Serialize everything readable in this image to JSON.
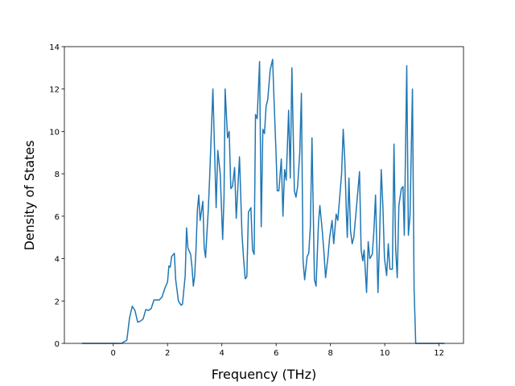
{
  "chart_data": {
    "type": "line",
    "xlabel": "Frequency (THz)",
    "ylabel": "Density of States",
    "color": "#1f77b4",
    "xlim": [
      -1.8,
      12.9
    ],
    "ylim": [
      0,
      14
    ],
    "xticks": [
      0,
      2,
      4,
      6,
      8,
      10,
      12
    ],
    "yticks": [
      0,
      2,
      4,
      6,
      8,
      10,
      12,
      14
    ],
    "x": [
      -1.15,
      0.3,
      0.5,
      0.6,
      0.7,
      0.8,
      0.9,
      1.0,
      1.1,
      1.2,
      1.3,
      1.4,
      1.5,
      1.6,
      1.7,
      1.8,
      1.9,
      2.0,
      2.05,
      2.1,
      2.15,
      2.25,
      2.3,
      2.4,
      2.5,
      2.55,
      2.65,
      2.7,
      2.75,
      2.85,
      2.9,
      2.95,
      3.0,
      3.05,
      3.1,
      3.15,
      3.2,
      3.3,
      3.35,
      3.4,
      3.5,
      3.55,
      3.67,
      3.79,
      3.85,
      3.94,
      4.03,
      4.08,
      4.12,
      4.21,
      4.27,
      4.33,
      4.39,
      4.47,
      4.53,
      4.65,
      4.74,
      4.8,
      4.86,
      4.92,
      4.98,
      5.07,
      5.13,
      5.19,
      5.24,
      5.3,
      5.39,
      5.45,
      5.51,
      5.57,
      5.63,
      5.69,
      5.78,
      5.87,
      5.93,
      5.99,
      6.04,
      6.1,
      6.19,
      6.25,
      6.31,
      6.37,
      6.46,
      6.52,
      6.58,
      6.67,
      6.73,
      6.79,
      6.87,
      6.93,
      6.99,
      7.05,
      7.14,
      7.2,
      7.26,
      7.32,
      7.41,
      7.47,
      7.56,
      7.61,
      7.7,
      7.76,
      7.82,
      7.91,
      7.97,
      8.06,
      8.12,
      8.21,
      8.27,
      8.36,
      8.41,
      8.47,
      8.53,
      8.59,
      8.62,
      8.68,
      8.74,
      8.8,
      8.86,
      8.95,
      9.07,
      9.13,
      9.19,
      9.24,
      9.33,
      9.39,
      9.45,
      9.54,
      9.6,
      9.66,
      9.75,
      9.81,
      9.87,
      9.93,
      9.99,
      10.07,
      10.13,
      10.19,
      10.28,
      10.34,
      10.4,
      10.46,
      10.52,
      10.61,
      10.67,
      10.72,
      10.81,
      10.87,
      10.93,
      11.02,
      11.08,
      11.14,
      12.2
    ],
    "values": [
      0,
      0,
      0.15,
      1.2,
      1.75,
      1.55,
      1.0,
      1.05,
      1.15,
      1.6,
      1.55,
      1.65,
      2.05,
      2.05,
      2.05,
      2.2,
      2.6,
      2.9,
      3.65,
      3.6,
      4.1,
      4.25,
      3.0,
      2.0,
      1.8,
      1.85,
      3.2,
      5.45,
      4.5,
      4.2,
      3.6,
      2.7,
      3.2,
      4.5,
      6.3,
      7.0,
      5.8,
      6.7,
      4.5,
      4.05,
      6.3,
      7.8,
      12.0,
      6.4,
      9.1,
      8.0,
      4.9,
      6.9,
      12.0,
      9.7,
      10.0,
      7.3,
      7.4,
      8.3,
      5.9,
      8.8,
      5.2,
      4.0,
      3.05,
      3.15,
      6.2,
      6.4,
      4.4,
      4.2,
      10.8,
      10.6,
      13.3,
      5.5,
      10.1,
      9.9,
      11.2,
      11.5,
      12.9,
      13.4,
      11.2,
      9.2,
      7.2,
      7.2,
      8.7,
      6.0,
      8.2,
      7.7,
      11.0,
      7.8,
      13.0,
      7.2,
      6.9,
      7.4,
      9.0,
      11.8,
      3.9,
      3.0,
      4.1,
      4.25,
      5.5,
      9.7,
      3.0,
      2.7,
      5.7,
      6.5,
      5.3,
      4.3,
      3.1,
      4.1,
      5.0,
      5.8,
      4.7,
      6.1,
      5.8,
      7.2,
      8.0,
      10.1,
      8.6,
      6.0,
      5.0,
      7.8,
      5.3,
      4.7,
      5.0,
      6.3,
      8.1,
      4.4,
      3.9,
      4.4,
      2.4,
      4.8,
      4.0,
      4.2,
      5.3,
      7.0,
      2.4,
      5.0,
      8.2,
      6.5,
      4.0,
      3.2,
      4.7,
      3.5,
      3.5,
      9.4,
      4.5,
      3.1,
      6.5,
      7.3,
      7.4,
      5.1,
      13.1,
      5.1,
      6.0,
      12.0,
      2.6,
      0,
      0
    ]
  }
}
